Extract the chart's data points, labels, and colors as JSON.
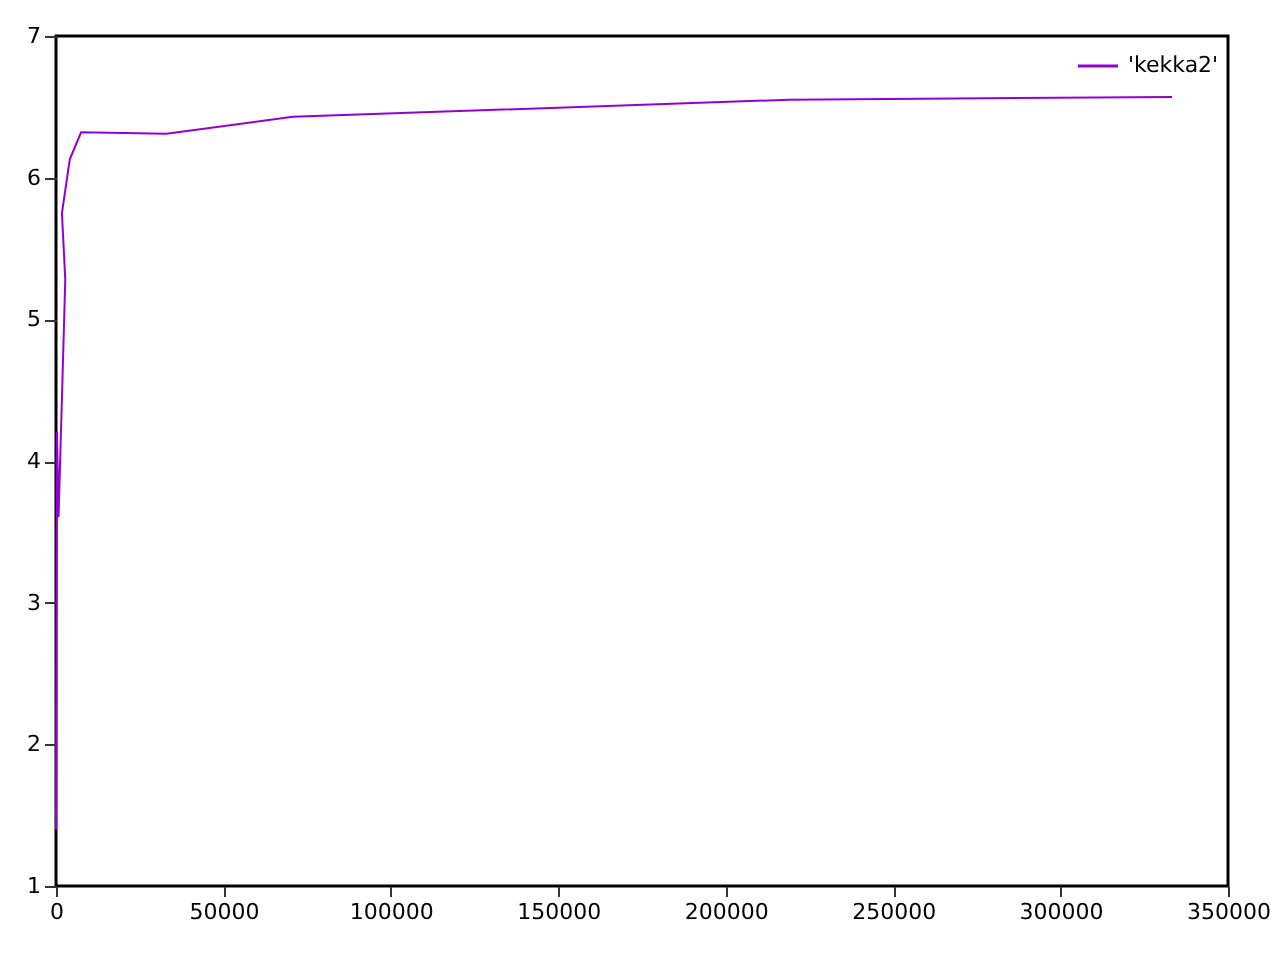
{
  "chart_data": {
    "type": "line",
    "x": [
      0,
      300,
      770,
      2770,
      1770,
      4120,
      7480,
      33000,
      70700,
      219000,
      333300
    ],
    "series": [
      {
        "name": "'kekka2'",
        "color": "#9400d3",
        "values": [
          1.4,
          4.2,
          3.61,
          5.28,
          5.75,
          6.13,
          6.32,
          6.31,
          6.43,
          6.55,
          6.57
        ]
      }
    ],
    "xlim": [
      0,
      350000
    ],
    "xticks": [
      0,
      50000,
      100000,
      150000,
      200000,
      250000,
      300000,
      350000
    ],
    "ylim": [
      1,
      7
    ],
    "yticks": [
      1,
      2,
      3,
      4,
      5,
      6,
      7
    ],
    "grid": false,
    "legend": "top right",
    "marker": "none",
    "line_style": "solid"
  }
}
